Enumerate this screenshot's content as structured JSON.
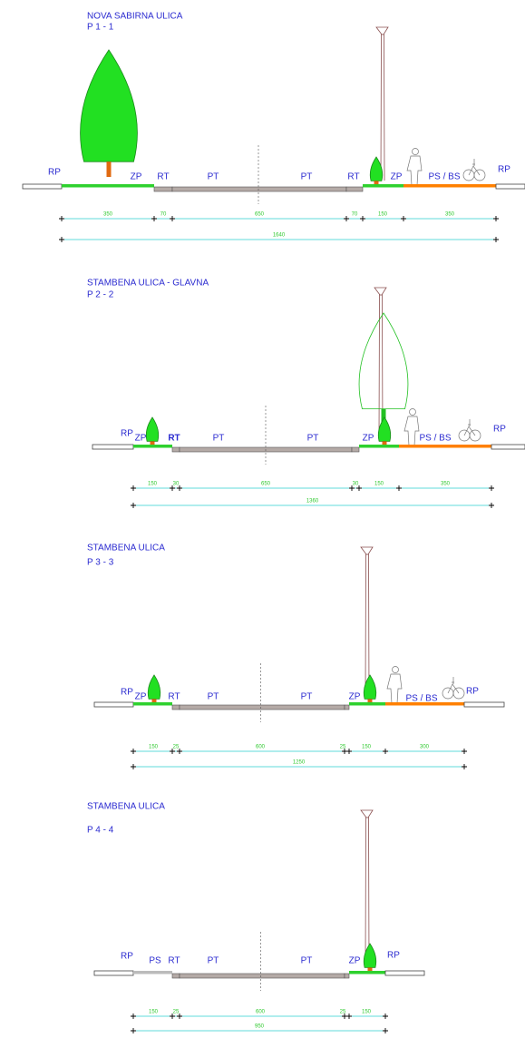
{
  "sections": [
    {
      "title": "NOVA SABIRNA ULICA",
      "code": "P 1 - 1",
      "labels": [
        "RP",
        "ZP",
        "RT",
        "PT",
        "PT",
        "RT",
        "ZP",
        "PS / BS",
        "RP"
      ],
      "dims": [
        350,
        70,
        650,
        70,
        150,
        350
      ],
      "total": 1640
    },
    {
      "title": "STAMBENA ULICA - GLAVNA",
      "code": "P 2 - 2",
      "labels": [
        "RP",
        "ZP",
        "RT",
        "PT",
        "PT",
        "ZP",
        "PS / BS",
        "RP"
      ],
      "dims": [
        150,
        30,
        650,
        30,
        150,
        350
      ],
      "total": 1360
    },
    {
      "title": "STAMBENA ULICA",
      "code": "P 3 - 3",
      "labels": [
        "RP",
        "ZP",
        "RT",
        "PT",
        "PT",
        "ZP",
        "PS / BS",
        "RP"
      ],
      "dims": [
        150,
        25,
        600,
        25,
        150,
        300
      ],
      "total": 1250
    },
    {
      "title": "STAMBENA ULICA",
      "code": "P 4 - 4",
      "labels": [
        "RP",
        "PS",
        "RT",
        "PT",
        "PT",
        "ZP",
        "RP"
      ],
      "dims": [
        150,
        25,
        600,
        25,
        150
      ],
      "total": 950
    }
  ]
}
